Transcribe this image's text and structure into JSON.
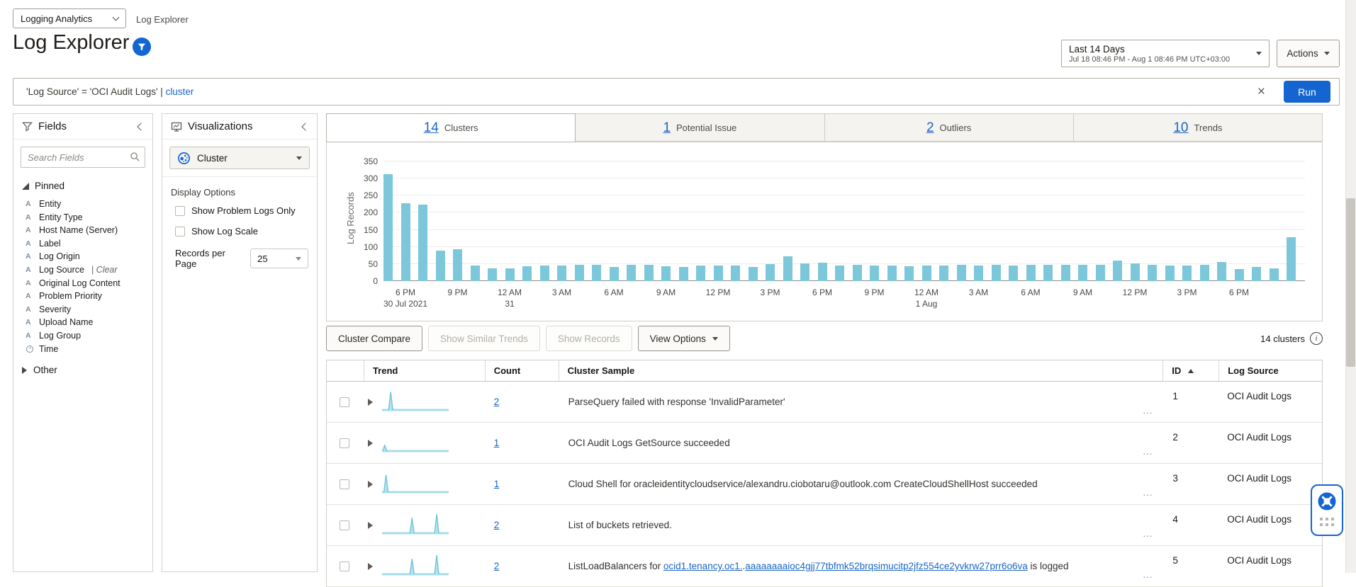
{
  "app": {
    "switcher_label": "Logging Analytics",
    "breadcrumb": "Log Explorer"
  },
  "header": {
    "title": "Log Explorer",
    "time_range": {
      "label": "Last 14 Days",
      "detail": "Jul 18 08:46 PM - Aug 1 08:46 PM UTC+03:00"
    },
    "actions_label": "Actions"
  },
  "query_bar": {
    "query_plain": "'Log Source' = 'OCI Audit Logs' | ",
    "query_link": "cluster",
    "run_label": "Run"
  },
  "fields_panel": {
    "title": "Fields",
    "search_placeholder": "Search Fields",
    "pinned_label": "Pinned",
    "other_label": "Other",
    "items": [
      {
        "icon": "A",
        "label": "Entity"
      },
      {
        "icon": "A",
        "label": "Entity Type"
      },
      {
        "icon": "A",
        "label": "Host Name (Server)"
      },
      {
        "icon": "A",
        "label": "Label"
      },
      {
        "icon": "A",
        "label": "Log Origin"
      },
      {
        "icon": "A",
        "label": "Log Source",
        "action": "Clear"
      },
      {
        "icon": "A",
        "label": "Original Log Content"
      },
      {
        "icon": "A",
        "label": "Problem Priority"
      },
      {
        "icon": "A",
        "label": "Severity"
      },
      {
        "icon": "A",
        "label": "Upload Name"
      },
      {
        "icon": "A",
        "label": "Log Group"
      },
      {
        "icon": "clock",
        "label": "Time"
      }
    ]
  },
  "viz_panel": {
    "title": "Visualizations",
    "selected_viz": "Cluster",
    "display_options_label": "Display Options",
    "checkboxes": [
      {
        "label": "Show Problem Logs Only",
        "checked": false
      },
      {
        "label": "Show Log Scale",
        "checked": false
      }
    ],
    "records_per_page_label": "Records per Page",
    "records_per_page_value": "25"
  },
  "tabs": [
    {
      "count": "14",
      "label": "Clusters",
      "active": true
    },
    {
      "count": "1",
      "label": "Potential Issue",
      "active": false
    },
    {
      "count": "2",
      "label": "Outliers",
      "active": false
    },
    {
      "count": "10",
      "label": "Trends",
      "active": false
    }
  ],
  "chart_data": {
    "type": "bar",
    "title": "",
    "xlabel": "",
    "ylabel": "Log Records",
    "ylim": [
      0,
      350
    ],
    "yticks": [
      0,
      50,
      100,
      150,
      200,
      250,
      300,
      350
    ],
    "bar_color": "#7cc8da",
    "x_interval": "1 hour per bar",
    "values": [
      313,
      228,
      223,
      90,
      94,
      45,
      38,
      38,
      43,
      45,
      45,
      47,
      47,
      42,
      47,
      47,
      44,
      42,
      46,
      46,
      46,
      42,
      49,
      73,
      51,
      53,
      45,
      48,
      45,
      45,
      43,
      45,
      45,
      47,
      46,
      48,
      46,
      48,
      47,
      47,
      48,
      48,
      60,
      52,
      47,
      45,
      46,
      48,
      55,
      35,
      42,
      38,
      128
    ],
    "x_ticks": [
      {
        "index": 1,
        "label": "6 PM",
        "sub": "30 Jul 2021"
      },
      {
        "index": 4,
        "label": "9 PM"
      },
      {
        "index": 7,
        "label": "12 AM",
        "sub": "31"
      },
      {
        "index": 10,
        "label": "3 AM"
      },
      {
        "index": 13,
        "label": "6 AM"
      },
      {
        "index": 16,
        "label": "9 AM"
      },
      {
        "index": 19,
        "label": "12 PM"
      },
      {
        "index": 22,
        "label": "3 PM"
      },
      {
        "index": 25,
        "label": "6 PM"
      },
      {
        "index": 28,
        "label": "9 PM"
      },
      {
        "index": 31,
        "label": "12 AM",
        "sub": "1 Aug"
      },
      {
        "index": 34,
        "label": "3 AM"
      },
      {
        "index": 37,
        "label": "6 AM"
      },
      {
        "index": 40,
        "label": "9 AM"
      },
      {
        "index": 43,
        "label": "12 PM"
      },
      {
        "index": 46,
        "label": "3 PM"
      },
      {
        "index": 49,
        "label": "6 PM"
      }
    ]
  },
  "toolbar": {
    "buttons": [
      {
        "label": "Cluster Compare",
        "enabled": true,
        "dropdown": false
      },
      {
        "label": "Show Similar Trends",
        "enabled": false,
        "dropdown": false
      },
      {
        "label": "Show Records",
        "enabled": false,
        "dropdown": false
      },
      {
        "label": "View Options",
        "enabled": true,
        "dropdown": true
      }
    ],
    "summary": "14 clusters"
  },
  "table": {
    "columns": [
      "Trend",
      "Count",
      "Cluster Sample",
      "ID",
      "Log Source"
    ],
    "sort_column": "ID",
    "ellipsis": "...",
    "rows": [
      {
        "count": "2",
        "id": "1",
        "log_source": "OCI Audit Logs",
        "sample_parts": [
          {
            "text": "ParseQuery failed with response 'InvalidParameter'"
          }
        ],
        "spark": {
          "peaks": [
            {
              "pos": 0.13,
              "h": 0.95
            }
          ]
        }
      },
      {
        "count": "1",
        "id": "2",
        "log_source": "OCI Audit Logs",
        "sample_parts": [
          {
            "text": "OCI Audit Logs GetSource succeeded"
          }
        ],
        "spark": {
          "peaks": [
            {
              "pos": 0.04,
              "h": 0.3
            }
          ]
        }
      },
      {
        "count": "1",
        "id": "3",
        "log_source": "OCI Audit Logs",
        "sample_parts": [
          {
            "text": "Cloud Shell for oracleidentitycloudservice/alexandru.ciobotaru@outlook.com CreateCloudShellHost succeeded"
          }
        ],
        "spark": {
          "peaks": [
            {
              "pos": 0.06,
              "h": 0.9
            }
          ]
        }
      },
      {
        "count": "2",
        "id": "4",
        "log_source": "OCI Audit Logs",
        "sample_parts": [
          {
            "text": "List of buckets retrieved."
          }
        ],
        "spark": {
          "peaks": [
            {
              "pos": 0.45,
              "h": 0.8
            },
            {
              "pos": 0.82,
              "h": 1.0
            }
          ]
        }
      },
      {
        "count": "2",
        "id": "5",
        "log_source": "OCI Audit Logs",
        "sample_parts": [
          {
            "text": "ListLoadBalancers for "
          },
          {
            "text": "ocid1.tenancy.oc1.",
            "link": true
          },
          {
            "text": "."
          },
          {
            "text": "aaaaaaaaioc4gjj77tbfmk52brqsimucitp2jfz554ce2yvkrw27prr6o6va",
            "link": true
          },
          {
            "text": " is logged"
          }
        ],
        "spark": {
          "peaks": [
            {
              "pos": 0.45,
              "h": 0.8
            },
            {
              "pos": 0.82,
              "h": 1.0
            }
          ]
        }
      }
    ]
  },
  "colors": {
    "accent": "#1565d0",
    "bar": "#7cc8da",
    "link": "#1a66c4"
  }
}
